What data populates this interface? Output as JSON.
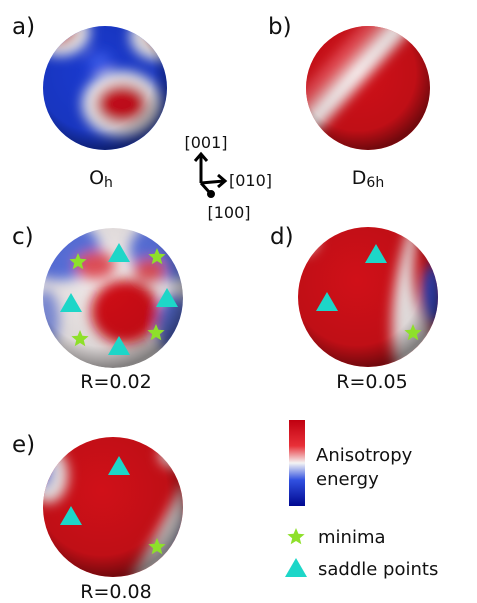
{
  "panels": [
    {
      "label": "a)",
      "caption": {
        "symbol": "O",
        "subscript": "h"
      }
    },
    {
      "label": "b)",
      "caption": {
        "symbol": "D",
        "subscript": "6h"
      }
    },
    {
      "label": "c)",
      "caption": "R=0.02"
    },
    {
      "label": "d)",
      "caption": "R=0.05"
    },
    {
      "label": "e)",
      "caption": "R=0.08"
    }
  ],
  "axes": {
    "labels": [
      "[001]",
      "[010]",
      "[100]"
    ]
  },
  "colorbar": {
    "label_lines": [
      "Anisotropy",
      "energy"
    ]
  },
  "legend": {
    "items": [
      "minima",
      "saddle points"
    ]
  }
}
